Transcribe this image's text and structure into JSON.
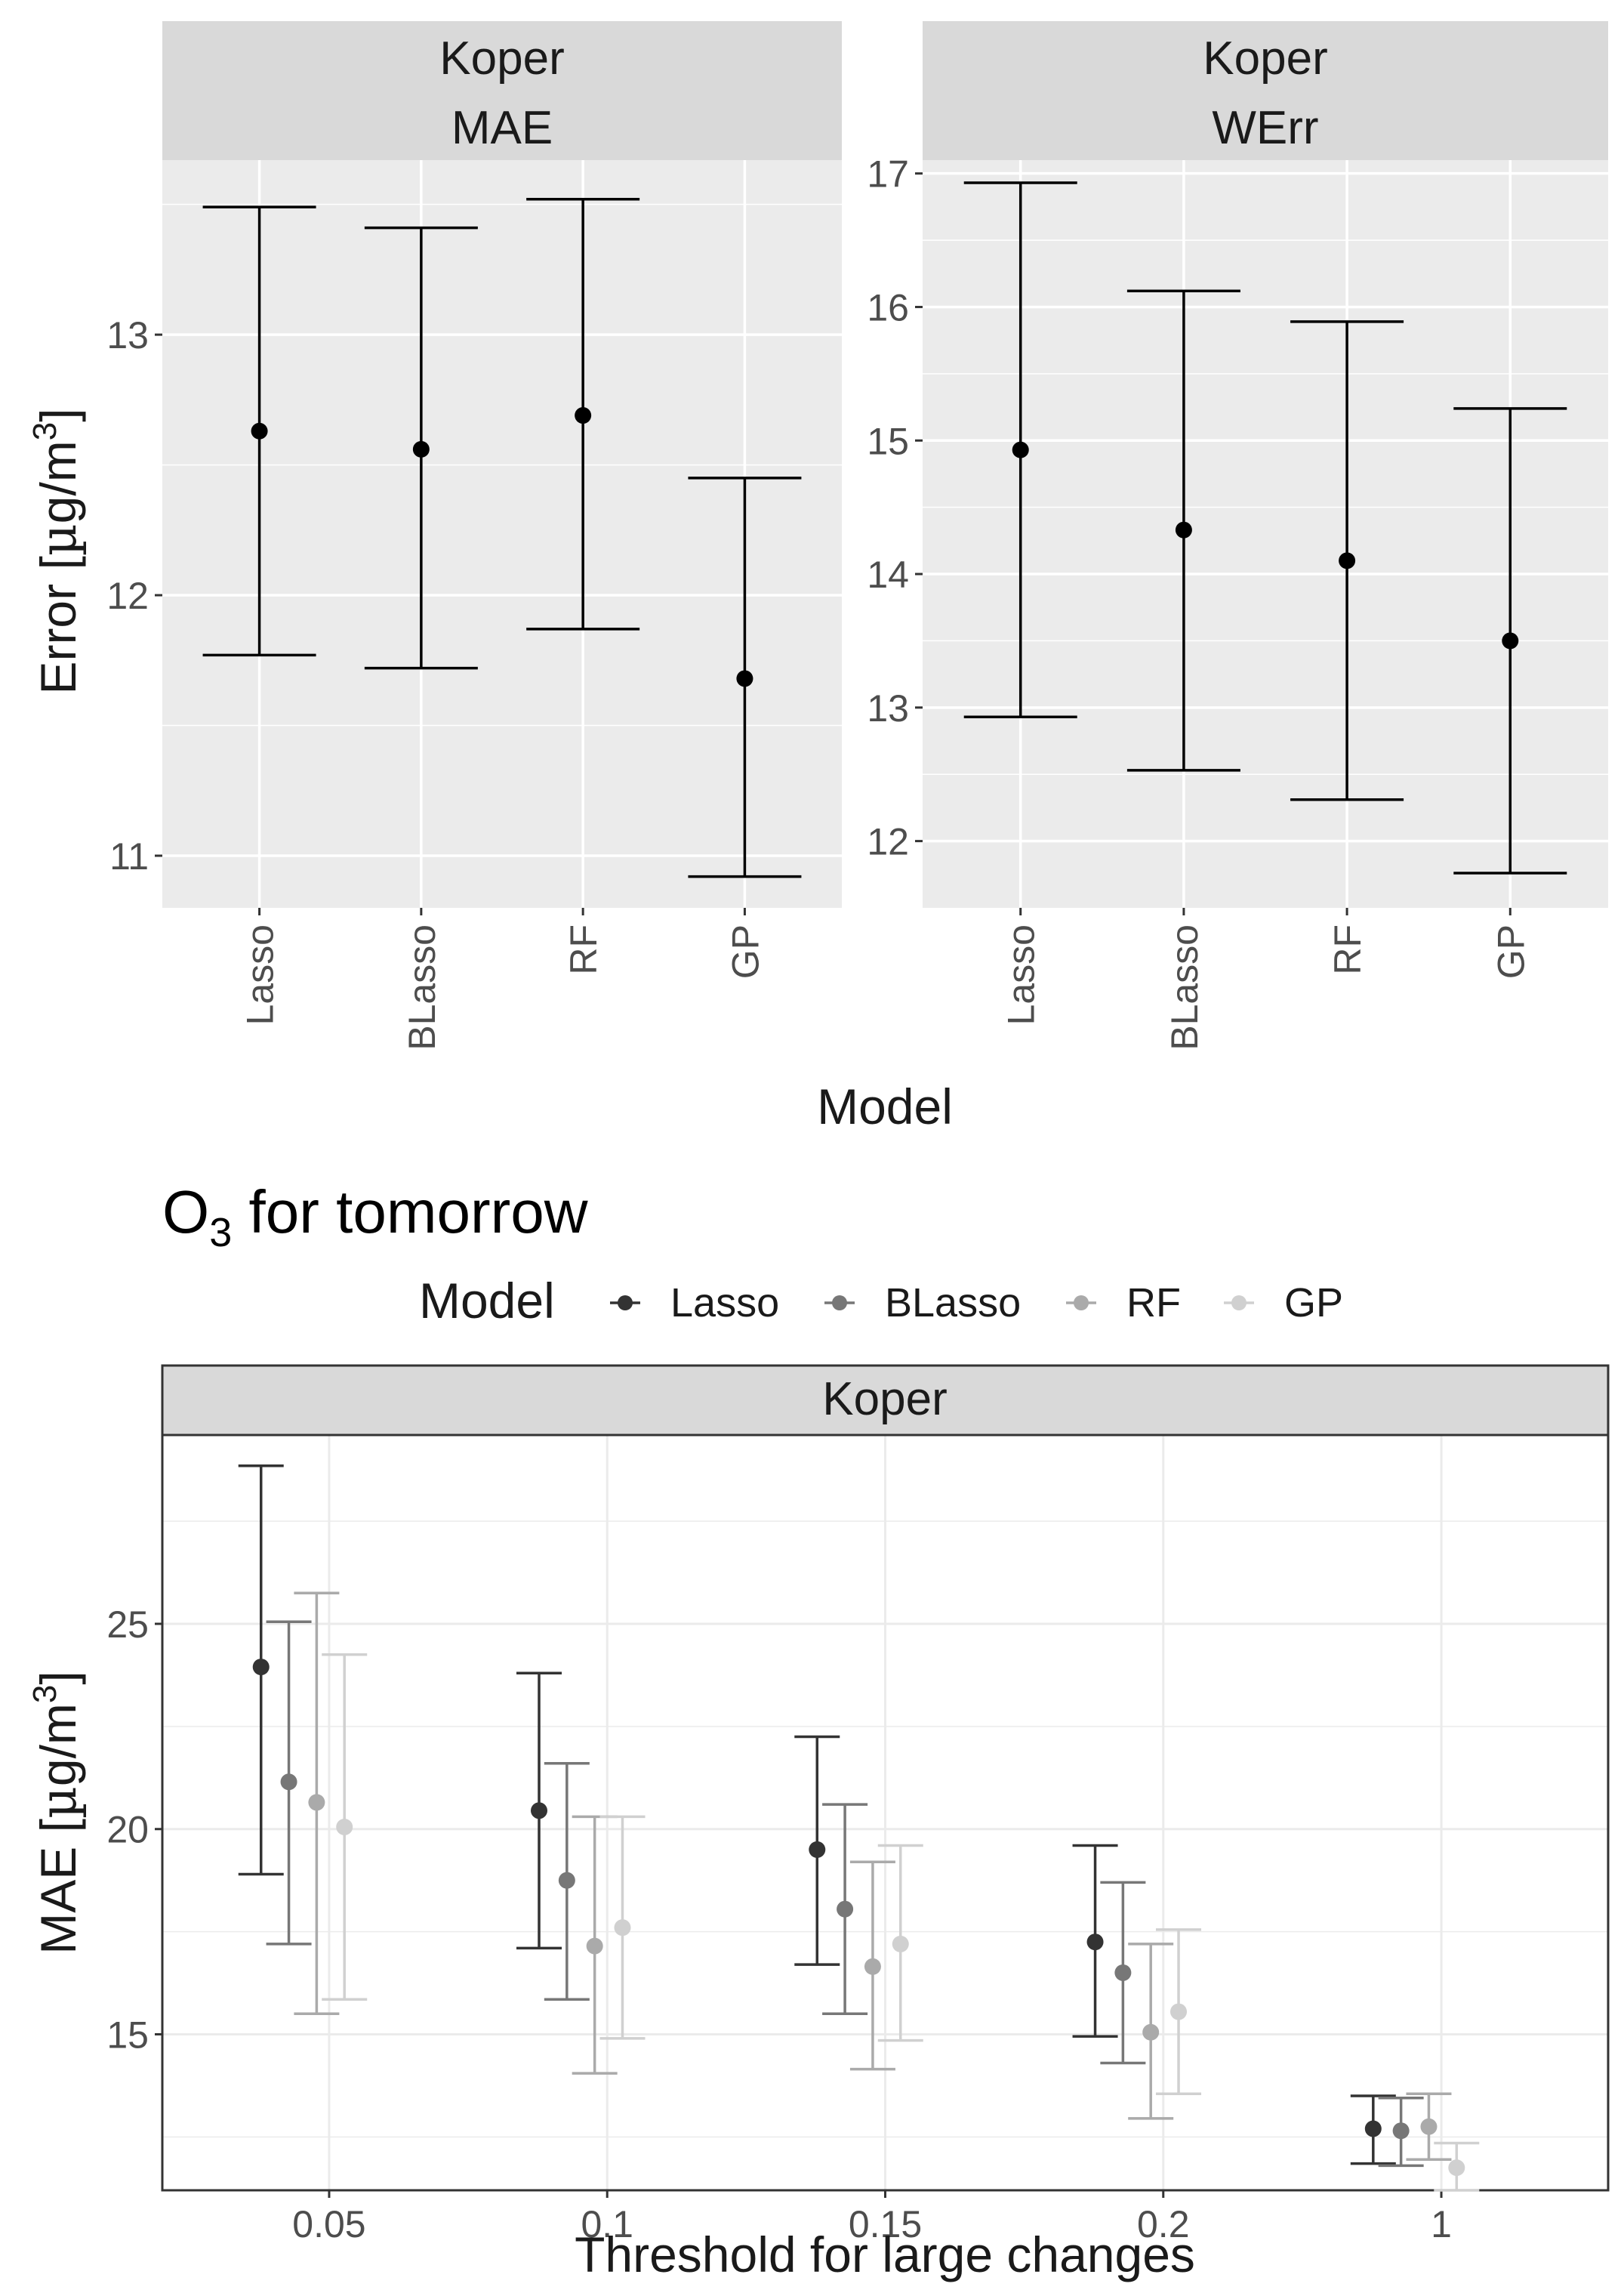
{
  "colors": {
    "panel_bg": "#ebebeb",
    "strip_bg": "#d9d9d9",
    "grid_major": "#ffffff",
    "bw_grid": "#ebebeb",
    "text": "#1a1a1a",
    "tick_text": "#4d4d4d",
    "series": [
      "#333333",
      "#777777",
      "#aaaaaa",
      "#d0d0d0"
    ]
  },
  "chart_data": [
    {
      "type": "errorbar",
      "strip": [
        "Koper",
        "MAE"
      ],
      "ylabel": "Error [µg/m³]",
      "ylabel_parts": [
        "Error [",
        "µ",
        "g/m",
        "3",
        "]"
      ],
      "ylim": [
        10.8,
        13.67
      ],
      "yticks": [
        11,
        12,
        13
      ],
      "categories": [
        "Lasso",
        "BLasso",
        "RF",
        "GP"
      ],
      "points": [
        {
          "model": "Lasso",
          "mean": 12.63,
          "lower": 11.77,
          "upper": 13.49
        },
        {
          "model": "BLasso",
          "mean": 12.56,
          "lower": 11.72,
          "upper": 13.41
        },
        {
          "model": "RF",
          "mean": 12.69,
          "lower": 11.87,
          "upper": 13.52
        },
        {
          "model": "GP",
          "mean": 11.68,
          "lower": 10.92,
          "upper": 12.45
        }
      ]
    },
    {
      "type": "errorbar",
      "strip": [
        "Koper",
        "WErr"
      ],
      "ylim": [
        11.5,
        17.1
      ],
      "yticks": [
        12,
        13,
        14,
        15,
        16,
        17
      ],
      "categories": [
        "Lasso",
        "BLasso",
        "RF",
        "GP"
      ],
      "points": [
        {
          "model": "Lasso",
          "mean": 14.93,
          "lower": 12.93,
          "upper": 16.93
        },
        {
          "model": "BLasso",
          "mean": 14.33,
          "lower": 12.53,
          "upper": 16.12
        },
        {
          "model": "RF",
          "mean": 14.1,
          "lower": 12.31,
          "upper": 15.89
        },
        {
          "model": "GP",
          "mean": 13.5,
          "lower": 11.76,
          "upper": 15.24
        }
      ]
    },
    {
      "type": "errorbar",
      "title": "O₃ for tomorrow",
      "title_parts": [
        "O",
        "3",
        " for tomorrow"
      ],
      "strip": [
        "Koper"
      ],
      "legend_title": "Model",
      "legend_position": "top",
      "series_names": [
        "Lasso",
        "BLasso",
        "RF",
        "GP"
      ],
      "xlabel": "Threshold for large changes",
      "ylabel": "MAE [µg/m³]",
      "ylabel_parts": [
        "MAE [",
        "µ",
        "g/m",
        "3",
        "]"
      ],
      "ylim": [
        11.2,
        29.6
      ],
      "yticks": [
        15,
        20,
        25
      ],
      "categories": [
        "0.05",
        "0.1",
        "0.15",
        "0.2",
        "1"
      ],
      "series": [
        {
          "name": "Lasso",
          "mean": [
            23.95,
            20.45,
            19.5,
            17.25,
            12.7
          ],
          "lower": [
            18.9,
            17.1,
            16.7,
            14.95,
            11.85
          ],
          "upper": [
            28.85,
            23.8,
            22.25,
            19.6,
            13.5
          ]
        },
        {
          "name": "BLasso",
          "mean": [
            21.15,
            18.75,
            18.05,
            16.5,
            12.65
          ],
          "lower": [
            17.2,
            15.85,
            15.5,
            14.3,
            11.8
          ],
          "upper": [
            25.05,
            21.6,
            20.6,
            18.7,
            13.45
          ]
        },
        {
          "name": "RF",
          "mean": [
            20.65,
            17.15,
            16.65,
            15.05,
            12.75
          ],
          "lower": [
            15.5,
            14.05,
            14.15,
            12.95,
            11.95
          ],
          "upper": [
            25.75,
            20.3,
            19.2,
            17.2,
            13.55
          ]
        },
        {
          "name": "GP",
          "mean": [
            20.05,
            17.6,
            17.2,
            15.55,
            11.75
          ],
          "lower": [
            15.85,
            14.9,
            14.85,
            13.55,
            11.2
          ],
          "upper": [
            24.25,
            20.3,
            19.6,
            17.55,
            12.35
          ]
        }
      ]
    }
  ],
  "shared": {
    "xlabel_top": "Model"
  }
}
